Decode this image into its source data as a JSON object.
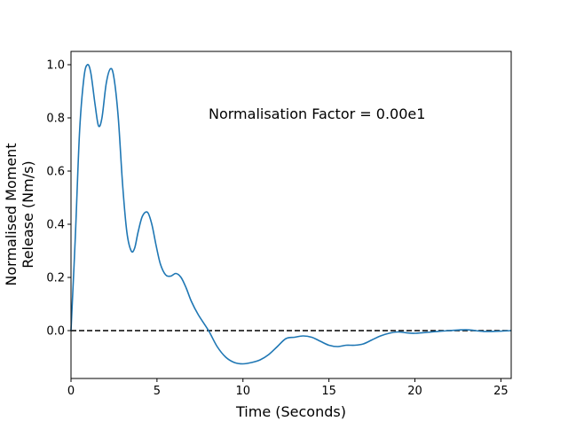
{
  "chart_data": {
    "type": "line",
    "xlabel": "Time (Seconds)",
    "ylabel_lines": [
      "Normalised Moment",
      "Release (Nm/s)"
    ],
    "xlim": [
      0,
      25.6
    ],
    "ylim": [
      -0.18,
      1.05
    ],
    "xticks": [
      0,
      5,
      10,
      15,
      20,
      25
    ],
    "yticks": [
      0.0,
      0.2,
      0.4,
      0.6,
      0.8,
      1.0
    ],
    "xtick_labels": [
      "0",
      "5",
      "10",
      "15",
      "20",
      "25"
    ],
    "ytick_labels": [
      "0.0",
      "0.2",
      "0.4",
      "0.6",
      "0.8",
      "1.0"
    ],
    "grid": false,
    "annotation": "Normalisation Factor = 0.00e1",
    "reference_line": {
      "y": 0,
      "style": "dashed",
      "color": "#000000"
    },
    "series": [
      {
        "color": "#1f77b4",
        "x": [
          0,
          0.25,
          0.5,
          0.75,
          0.95,
          1.15,
          1.4,
          1.6,
          1.8,
          2.05,
          2.3,
          2.5,
          2.75,
          3.0,
          3.25,
          3.5,
          3.7,
          3.9,
          4.15,
          4.45,
          4.7,
          4.95,
          5.2,
          5.5,
          5.8,
          6.1,
          6.4,
          6.7,
          7.0,
          7.4,
          8.0,
          8.5,
          9.0,
          9.5,
          10.0,
          10.5,
          11.0,
          11.5,
          12.0,
          12.5,
          13.0,
          13.5,
          14.0,
          14.5,
          15.0,
          15.5,
          16.0,
          16.5,
          17.0,
          17.5,
          18.0,
          18.5,
          19.0,
          19.5,
          20.0,
          21.0,
          22.0,
          23.0,
          24.0,
          25.0,
          25.6
        ],
        "y": [
          0.0,
          0.35,
          0.75,
          0.95,
          1.0,
          0.97,
          0.85,
          0.77,
          0.8,
          0.93,
          0.985,
          0.95,
          0.8,
          0.55,
          0.37,
          0.3,
          0.31,
          0.37,
          0.43,
          0.445,
          0.4,
          0.32,
          0.25,
          0.21,
          0.205,
          0.215,
          0.2,
          0.16,
          0.11,
          0.06,
          0.0,
          -0.06,
          -0.1,
          -0.12,
          -0.125,
          -0.12,
          -0.11,
          -0.09,
          -0.06,
          -0.03,
          -0.025,
          -0.02,
          -0.025,
          -0.04,
          -0.055,
          -0.06,
          -0.055,
          -0.055,
          -0.05,
          -0.035,
          -0.02,
          -0.01,
          -0.005,
          -0.008,
          -0.01,
          -0.005,
          0.0,
          0.003,
          -0.003,
          -0.002,
          0.0
        ]
      }
    ]
  }
}
